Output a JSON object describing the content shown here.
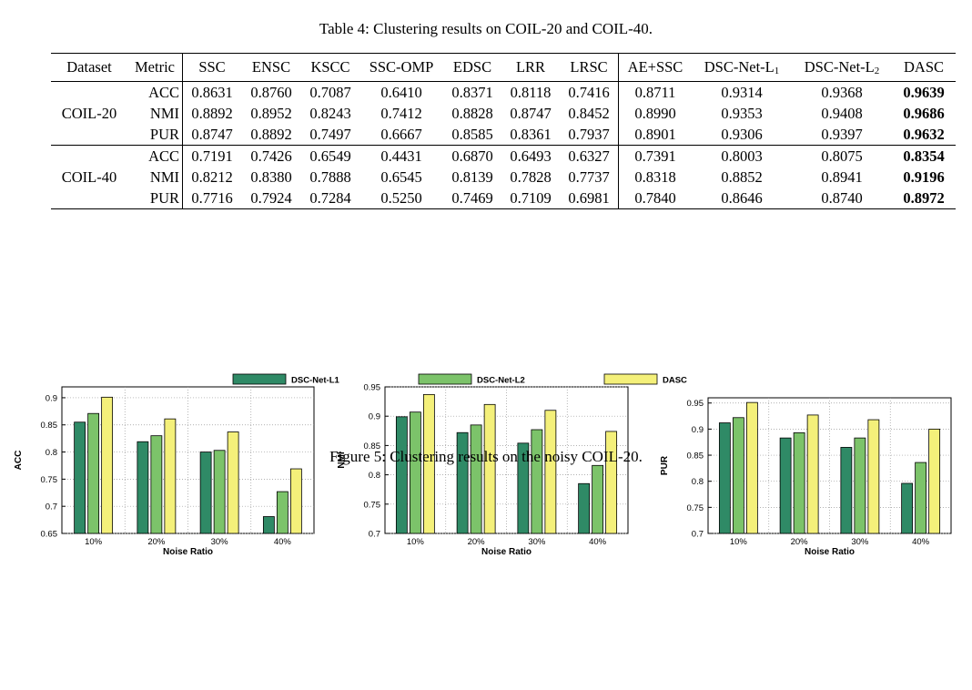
{
  "table": {
    "caption": "Table 4: Clustering results on COIL-20 and COIL-40.",
    "headers": [
      "Dataset",
      "Metric",
      "SSC",
      "ENSC",
      "KSCC",
      "SSC-OMP",
      "EDSC",
      "LRR",
      "LRSC",
      "AE+SSC",
      "DSC-Net-L",
      "DSC-Net-L",
      "DASC"
    ],
    "header_subscripts": {
      "10": "1",
      "11": "2"
    },
    "groups": [
      {
        "dataset": "COIL-20",
        "rows": [
          {
            "metric": "ACC",
            "values": [
              "0.8631",
              "0.8760",
              "0.7087",
              "0.6410",
              "0.8371",
              "0.8118",
              "0.7416",
              "0.8711",
              "0.9314",
              "0.9368",
              "0.9639"
            ]
          },
          {
            "metric": "NMI",
            "values": [
              "0.8892",
              "0.8952",
              "0.8243",
              "0.7412",
              "0.8828",
              "0.8747",
              "0.8452",
              "0.8990",
              "0.9353",
              "0.9408",
              "0.9686"
            ]
          },
          {
            "metric": "PUR",
            "values": [
              "0.8747",
              "0.8892",
              "0.7497",
              "0.6667",
              "0.8585",
              "0.8361",
              "0.7937",
              "0.8901",
              "0.9306",
              "0.9397",
              "0.9632"
            ]
          }
        ]
      },
      {
        "dataset": "COIL-40",
        "rows": [
          {
            "metric": "ACC",
            "values": [
              "0.7191",
              "0.7426",
              "0.6549",
              "0.4431",
              "0.6870",
              "0.6493",
              "0.6327",
              "0.7391",
              "0.8003",
              "0.8075",
              "0.8354"
            ]
          },
          {
            "metric": "NMI",
            "values": [
              "0.8212",
              "0.8380",
              "0.7888",
              "0.6545",
              "0.8139",
              "0.7828",
              "0.7737",
              "0.8318",
              "0.8852",
              "0.8941",
              "0.9196"
            ]
          },
          {
            "metric": "PUR",
            "values": [
              "0.7716",
              "0.7924",
              "0.7284",
              "0.5250",
              "0.7469",
              "0.7109",
              "0.6981",
              "0.7840",
              "0.8646",
              "0.8740",
              "0.8972"
            ]
          }
        ]
      }
    ]
  },
  "figure_caption": "Figure 5: Clustering results on the noisy COIL-20.",
  "colors": {
    "DSC-Net-L1": "#2f8a66",
    "DSC-Net-L2": "#7cc36a",
    "DASC": "#f4f07a"
  },
  "chart_data": [
    {
      "type": "bar",
      "title": "",
      "xlabel": "Noise Ratio",
      "ylabel": "ACC",
      "categories": [
        "10%",
        "20%",
        "30%",
        "40%"
      ],
      "ylim": [
        0.65,
        0.92
      ],
      "yticks": [
        "0.65",
        "0.7",
        "0.75",
        "0.8",
        "0.85",
        "0.9"
      ],
      "series": [
        {
          "name": "DSC-Net-L1",
          "values": [
            0.855,
            0.819,
            0.8,
            0.681
          ]
        },
        {
          "name": "DSC-Net-L2",
          "values": [
            0.871,
            0.83,
            0.803,
            0.727
          ]
        },
        {
          "name": "DASC",
          "values": [
            0.901,
            0.861,
            0.837,
            0.769
          ]
        }
      ]
    },
    {
      "type": "bar",
      "title": "",
      "xlabel": "Noise Ratio",
      "ylabel": "NMI",
      "categories": [
        "10%",
        "20%",
        "30%",
        "40%"
      ],
      "ylim": [
        0.7,
        0.95
      ],
      "yticks": [
        "0.7",
        "0.75",
        "0.8",
        "0.85",
        "0.9",
        "0.95"
      ],
      "series": [
        {
          "name": "DSC-Net-L1",
          "values": [
            0.899,
            0.872,
            0.854,
            0.785
          ]
        },
        {
          "name": "DSC-Net-L2",
          "values": [
            0.907,
            0.885,
            0.877,
            0.816
          ]
        },
        {
          "name": "DASC",
          "values": [
            0.937,
            0.92,
            0.91,
            0.874
          ]
        }
      ]
    },
    {
      "type": "bar",
      "title": "",
      "xlabel": "Noise Ratio",
      "ylabel": "PUR",
      "categories": [
        "10%",
        "20%",
        "30%",
        "40%"
      ],
      "ylim": [
        0.7,
        0.96
      ],
      "yticks": [
        "0.7",
        "0.75",
        "0.8",
        "0.85",
        "0.9",
        "0.95"
      ],
      "series": [
        {
          "name": "DSC-Net-L1",
          "values": [
            0.912,
            0.883,
            0.865,
            0.796
          ]
        },
        {
          "name": "DSC-Net-L2",
          "values": [
            0.922,
            0.893,
            0.883,
            0.836
          ]
        },
        {
          "name": "DASC",
          "values": [
            0.951,
            0.927,
            0.918,
            0.9
          ]
        }
      ]
    }
  ],
  "legend": {
    "placement": "top",
    "items": [
      {
        "label": "DSC-Net-L1",
        "series": "DSC-Net-L1"
      },
      {
        "label": "DSC-Net-L2",
        "series": "DSC-Net-L2"
      },
      {
        "label": "DASC",
        "series": "DASC"
      }
    ]
  }
}
